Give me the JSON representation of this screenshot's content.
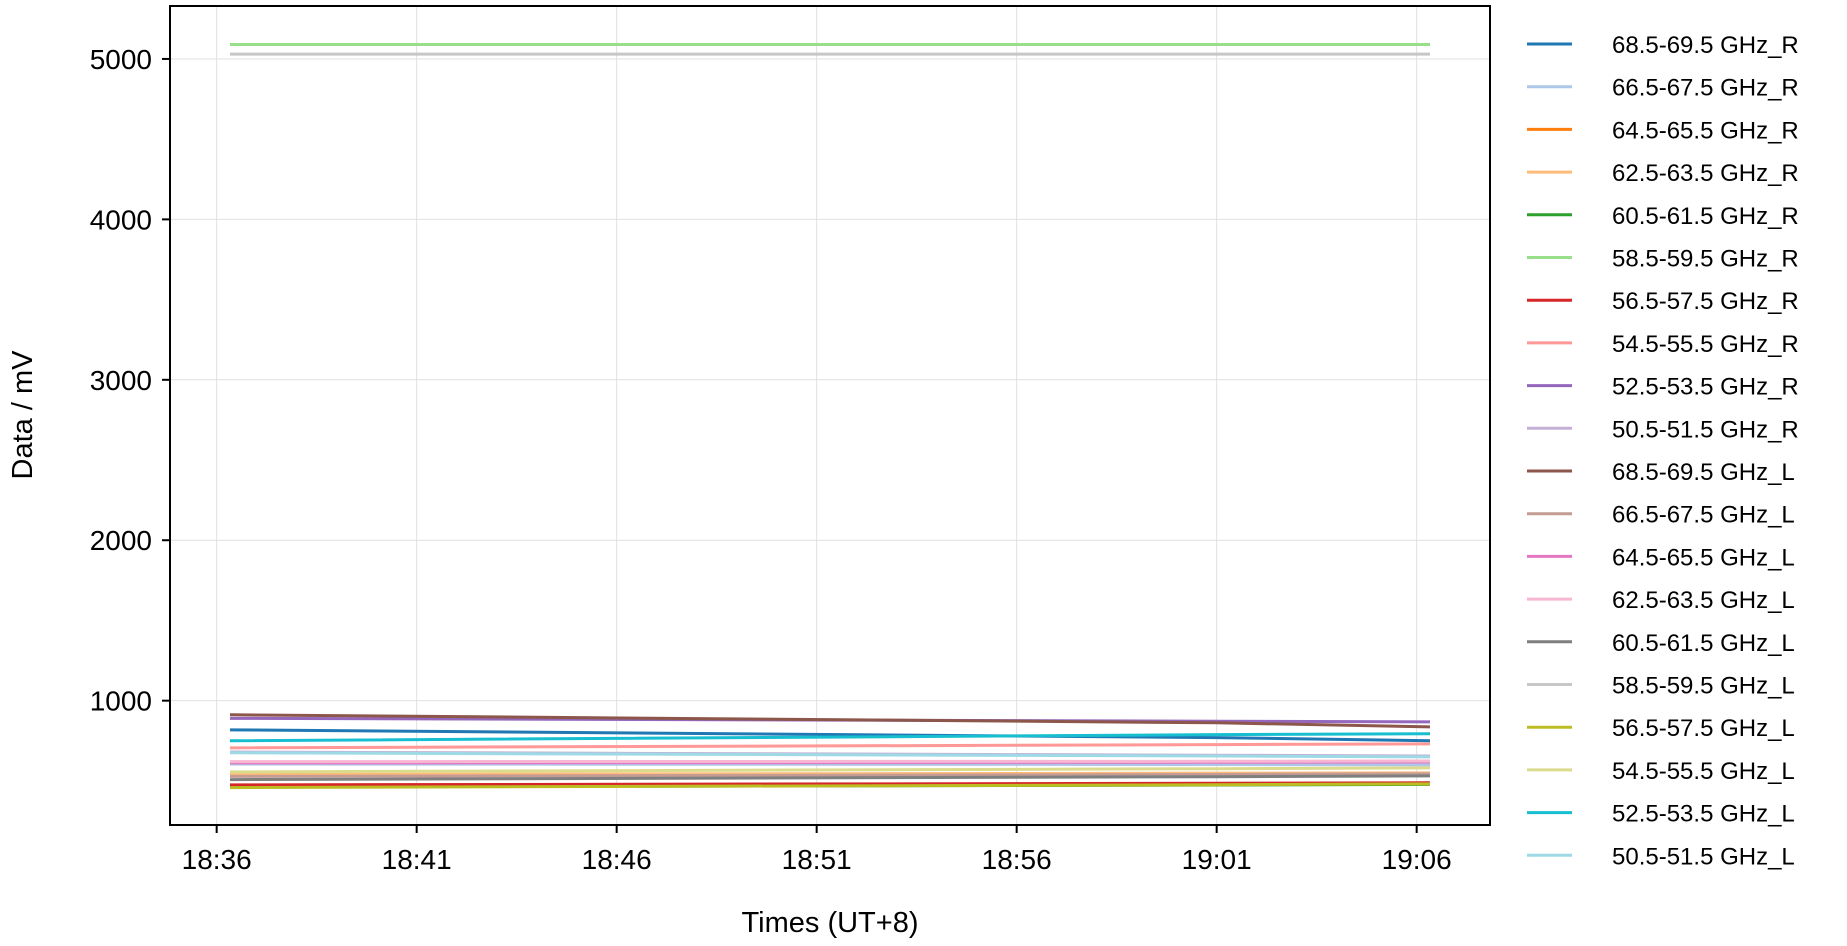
{
  "chart_data": {
    "type": "line",
    "xlabel": "Times (UT+8)",
    "ylabel": "Data / mV",
    "x": [
      "18:36:20",
      "19:01:00",
      "19:06:20"
    ],
    "xlim": [
      "18:34:50",
      "19:07:50"
    ],
    "xticks": [
      "18:36",
      "18:41",
      "18:46",
      "18:51",
      "18:56",
      "19:01",
      "19:06"
    ],
    "ylim": [
      225,
      5330
    ],
    "yticks": [
      1000,
      2000,
      3000,
      4000,
      5000
    ],
    "grid": true,
    "legend_position": "outside-right",
    "series": [
      {
        "name": "68.5-69.5 GHz_R",
        "color": "#1f77b4",
        "values": [
          818,
          770,
          750
        ]
      },
      {
        "name": "66.5-67.5 GHz_R",
        "color": "#aec7e8",
        "values": [
          605,
          602,
          600
        ]
      },
      {
        "name": "64.5-65.5 GHz_R",
        "color": "#ff7f0e",
        "values": [
          470,
          482,
          485
        ]
      },
      {
        "name": "62.5-63.5 GHz_R",
        "color": "#ffbb78",
        "values": [
          540,
          548,
          550
        ]
      },
      {
        "name": "60.5-61.5 GHz_R",
        "color": "#2ca02c",
        "values": [
          462,
          474,
          478
        ]
      },
      {
        "name": "58.5-59.5 GHz_R",
        "color": "#98df8a",
        "values": [
          5090,
          5090,
          5090
        ]
      },
      {
        "name": "56.5-57.5 GHz_R",
        "color": "#d62728",
        "values": [
          475,
          485,
          488
        ]
      },
      {
        "name": "54.5-55.5 GHz_R",
        "color": "#ff9896",
        "values": [
          706,
          726,
          731
        ]
      },
      {
        "name": "52.5-53.5 GHz_R",
        "color": "#9467bd",
        "values": [
          890,
          872,
          868
        ]
      },
      {
        "name": "50.5-51.5 GHz_R",
        "color": "#c5b0d5",
        "values": [
          680,
          660,
          655
        ]
      },
      {
        "name": "68.5-69.5 GHz_L",
        "color": "#8c564b",
        "values": [
          912,
          862,
          837
        ]
      },
      {
        "name": "66.5-67.5 GHz_L",
        "color": "#c49c94",
        "values": [
          528,
          540,
          544
        ]
      },
      {
        "name": "64.5-65.5 GHz_L",
        "color": "#e377c2",
        "values": [
          612,
          616,
          618
        ]
      },
      {
        "name": "62.5-63.5 GHz_L",
        "color": "#f7b6d2",
        "values": [
          620,
          622,
          624
        ]
      },
      {
        "name": "60.5-61.5 GHz_L",
        "color": "#7f7f7f",
        "values": [
          508,
          526,
          531
        ]
      },
      {
        "name": "58.5-59.5 GHz_L",
        "color": "#c7c7c7",
        "values": [
          5030,
          5030,
          5030
        ]
      },
      {
        "name": "56.5-57.5 GHz_L",
        "color": "#bcbd22",
        "values": [
          458,
          476,
          481
        ]
      },
      {
        "name": "54.5-55.5 GHz_L",
        "color": "#dbdb8d",
        "values": [
          556,
          576,
          581
        ]
      },
      {
        "name": "52.5-53.5 GHz_L",
        "color": "#17becf",
        "values": [
          750,
          788,
          794
        ]
      },
      {
        "name": "50.5-51.5 GHz_L",
        "color": "#9edae5",
        "values": [
          675,
          655,
          650
        ]
      }
    ]
  }
}
